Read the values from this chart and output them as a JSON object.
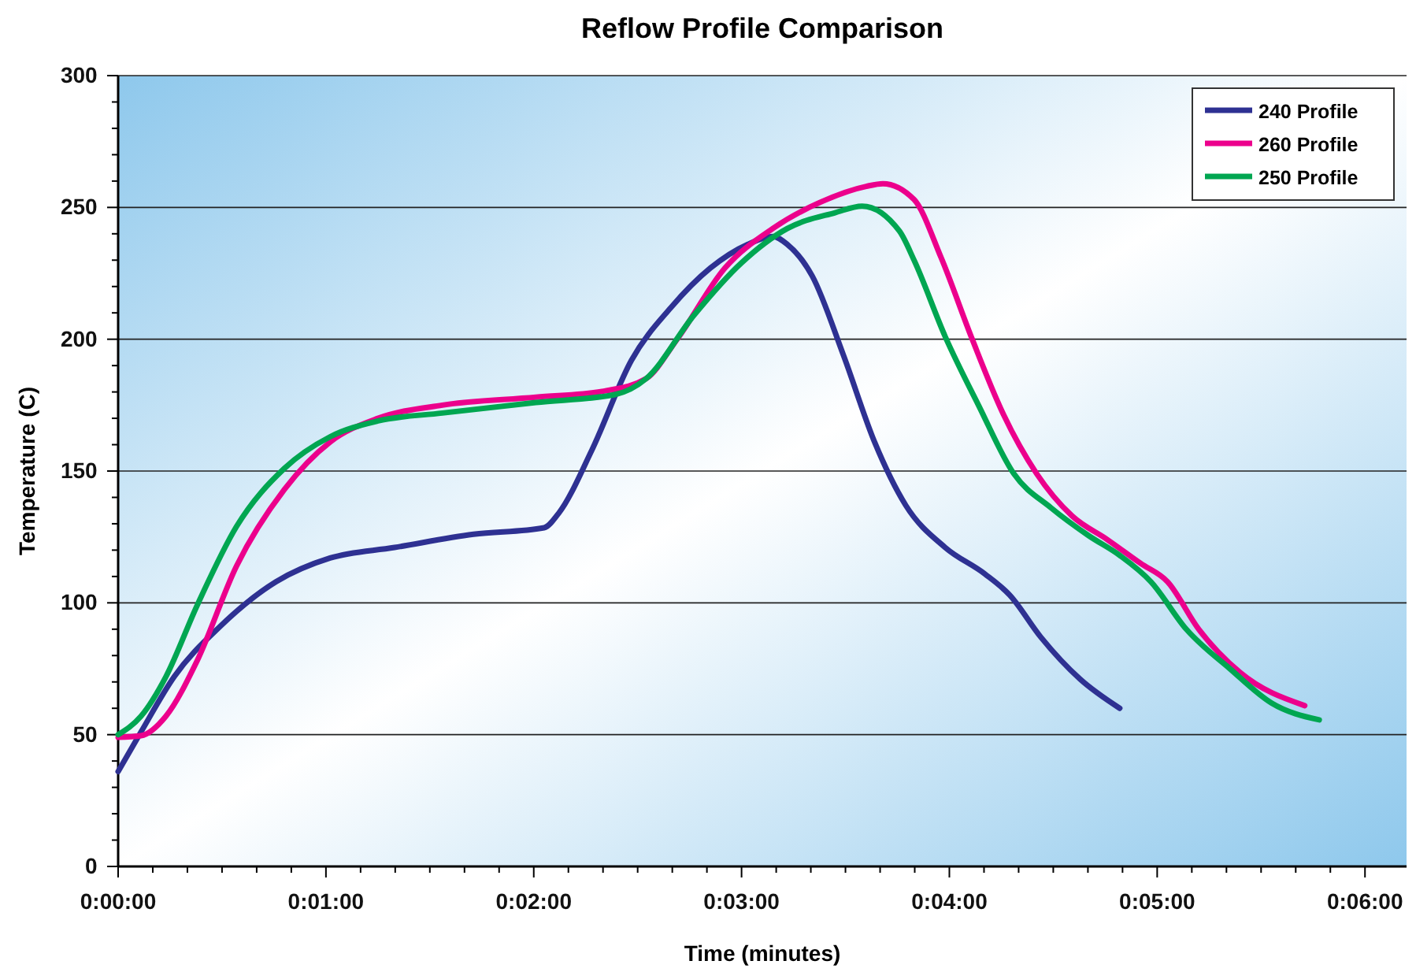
{
  "chart_data": {
    "type": "line",
    "title": "Reflow Profile Comparison",
    "xlabel": "Time (minutes)",
    "ylabel": "Temperature (C)",
    "xlim": [
      0,
      6.2
    ],
    "ylim": [
      0,
      300
    ],
    "xticks": [
      {
        "value": 0,
        "label": "0:00:00"
      },
      {
        "value": 0.1667,
        "label": null
      },
      {
        "value": 0.3333,
        "label": null
      },
      {
        "value": 0.5,
        "label": null
      },
      {
        "value": 0.6667,
        "label": null
      },
      {
        "value": 0.8333,
        "label": null
      },
      {
        "value": 1,
        "label": "0:01:00"
      },
      {
        "value": 1.1667,
        "label": null
      },
      {
        "value": 1.3333,
        "label": null
      },
      {
        "value": 1.5,
        "label": null
      },
      {
        "value": 1.6667,
        "label": null
      },
      {
        "value": 1.8333,
        "label": null
      },
      {
        "value": 2,
        "label": "0:02:00"
      },
      {
        "value": 2.1667,
        "label": null
      },
      {
        "value": 2.3333,
        "label": null
      },
      {
        "value": 2.5,
        "label": null
      },
      {
        "value": 2.6667,
        "label": null
      },
      {
        "value": 2.8333,
        "label": null
      },
      {
        "value": 3,
        "label": "0:03:00"
      },
      {
        "value": 3.1667,
        "label": null
      },
      {
        "value": 3.3333,
        "label": null
      },
      {
        "value": 3.5,
        "label": null
      },
      {
        "value": 3.6667,
        "label": null
      },
      {
        "value": 3.8333,
        "label": null
      },
      {
        "value": 4,
        "label": "0:04:00"
      },
      {
        "value": 4.1667,
        "label": null
      },
      {
        "value": 4.3333,
        "label": null
      },
      {
        "value": 4.5,
        "label": null
      },
      {
        "value": 4.6667,
        "label": null
      },
      {
        "value": 4.8333,
        "label": null
      },
      {
        "value": 5,
        "label": "0:05:00"
      },
      {
        "value": 5.1667,
        "label": null
      },
      {
        "value": 5.3333,
        "label": null
      },
      {
        "value": 5.5,
        "label": null
      },
      {
        "value": 5.6667,
        "label": null
      },
      {
        "value": 5.8333,
        "label": null
      },
      {
        "value": 6,
        "label": "0:06:00"
      }
    ],
    "yticks": [
      0,
      {
        "value": 10,
        "label": null
      },
      {
        "value": 20,
        "label": null
      },
      {
        "value": 30,
        "label": null
      },
      {
        "value": 40,
        "label": null
      },
      50,
      {
        "value": 60,
        "label": null
      },
      {
        "value": 70,
        "label": null
      },
      {
        "value": 80,
        "label": null
      },
      {
        "value": 90,
        "label": null
      },
      100,
      {
        "value": 110,
        "label": null
      },
      {
        "value": 120,
        "label": null
      },
      {
        "value": 130,
        "label": null
      },
      {
        "value": 140,
        "label": null
      },
      150,
      {
        "value": 160,
        "label": null
      },
      {
        "value": 170,
        "label": null
      },
      {
        "value": 180,
        "label": null
      },
      {
        "value": 190,
        "label": null
      },
      200,
      {
        "value": 210,
        "label": null
      },
      {
        "value": 220,
        "label": null
      },
      {
        "value": 230,
        "label": null
      },
      {
        "value": 240,
        "label": null
      },
      250,
      {
        "value": 260,
        "label": null
      },
      {
        "value": 270,
        "label": null
      },
      {
        "value": 280,
        "label": null
      },
      {
        "value": 290,
        "label": null
      },
      300
    ],
    "grid": "y",
    "legend": "top right",
    "marker": "none",
    "line_style": "solid",
    "series": [
      {
        "name": "240 Profile",
        "color": "#2e3192",
        "x": [
          0,
          0.11,
          0.27,
          0.49,
          0.76,
          1.02,
          1.33,
          1.71,
          2.05,
          2.12,
          2.28,
          2.47,
          2.66,
          2.85,
          3.03,
          3.15,
          3.22,
          3.34,
          3.49,
          3.64,
          3.79,
          3.98,
          4.17,
          4.29,
          4.44,
          4.63,
          4.82
        ],
        "values": [
          36,
          51,
          72,
          91,
          108,
          117,
          121,
          126,
          128.5,
          134,
          158,
          192,
          212,
          227,
          236,
          239,
          236,
          224,
          194,
          161,
          137,
          121,
          111,
          103,
          87,
          71,
          60
        ]
      },
      {
        "name": "260 Profile",
        "color": "#ec008c",
        "x": [
          0,
          0.11,
          0.23,
          0.38,
          0.57,
          0.8,
          1.02,
          1.25,
          1.56,
          2.01,
          2.35,
          2.54,
          2.69,
          2.92,
          3.15,
          3.38,
          3.6,
          3.68,
          3.83,
          3.96,
          4.11,
          4.26,
          4.42,
          4.59,
          4.76,
          4.92,
          5.05,
          5.2,
          5.4,
          5.71
        ],
        "values": [
          49,
          49.6,
          57,
          78,
          114,
          143,
          161,
          170,
          175,
          178,
          180.5,
          185,
          200,
          227,
          242,
          252,
          258,
          259,
          253,
          231,
          200,
          171.5,
          149,
          133,
          124,
          115,
          108,
          90,
          73.5,
          61
        ]
      },
      {
        "name": "250 Profile",
        "color": "#00a651",
        "x": [
          0,
          0.11,
          0.23,
          0.38,
          0.57,
          0.8,
          1.02,
          1.25,
          1.56,
          2.01,
          2.39,
          2.54,
          2.77,
          3,
          3.22,
          3.45,
          3.58,
          3.76,
          3.83,
          3.98,
          4.14,
          4.31,
          4.49,
          4.67,
          4.82,
          4.97,
          5.14,
          5.35,
          5.55,
          5.78
        ],
        "values": [
          50,
          57,
          72,
          99,
          129,
          151,
          163,
          169,
          172,
          176,
          179,
          185,
          209,
          229,
          242,
          248,
          250.5,
          241,
          230,
          201,
          175,
          149,
          136,
          125.5,
          118,
          108,
          90,
          75,
          62,
          55.6
        ]
      }
    ]
  }
}
